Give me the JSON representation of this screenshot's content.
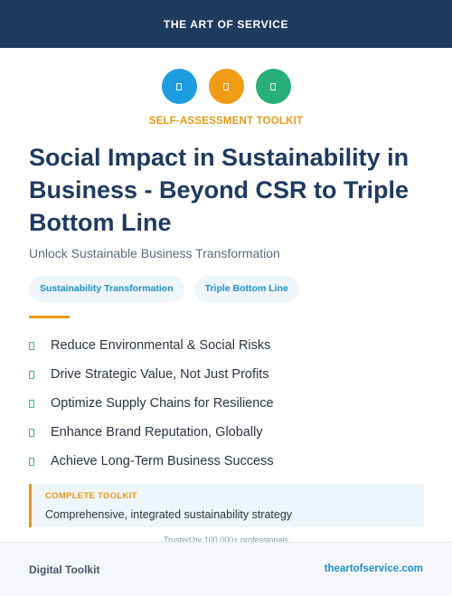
{
  "header": {
    "brand": "THE ART OF SERVICE"
  },
  "icons": [
    {
      "name": "doc-icon-blue",
      "color": "#1d9de0"
    },
    {
      "name": "doc-icon-orange",
      "color": "#f09b16"
    },
    {
      "name": "doc-icon-green",
      "color": "#27ae7a"
    }
  ],
  "eyebrow": "SELF-ASSESSMENT TOOLKIT",
  "title": "Social Impact in Sustainability in Business - Beyond CSR to Triple Bottom Line",
  "subtitle": "Unlock Sustainable Business Transformation",
  "tags": [
    "Sustainability Transformation",
    "Triple Bottom Line"
  ],
  "benefits": [
    "Reduce Environmental & Social Risks",
    "Drive Strategic Value, Not Just Profits",
    "Optimize Supply Chains for Resilience",
    "Enhance Brand Reputation, Globally",
    "Achieve Long-Term Business Success"
  ],
  "callout": {
    "kicker": "COMPLETE TOOLKIT",
    "text": "Comprehensive, integrated sustainability strategy"
  },
  "trusted": "Trusted by 100,000+ professionals",
  "footer": {
    "left": "Digital Toolkit",
    "right": "theartofservice.com"
  },
  "colors": {
    "navy": "#1f3a5f",
    "orange": "#e59a17",
    "blue": "#1d91c8",
    "green": "#36b37e"
  }
}
